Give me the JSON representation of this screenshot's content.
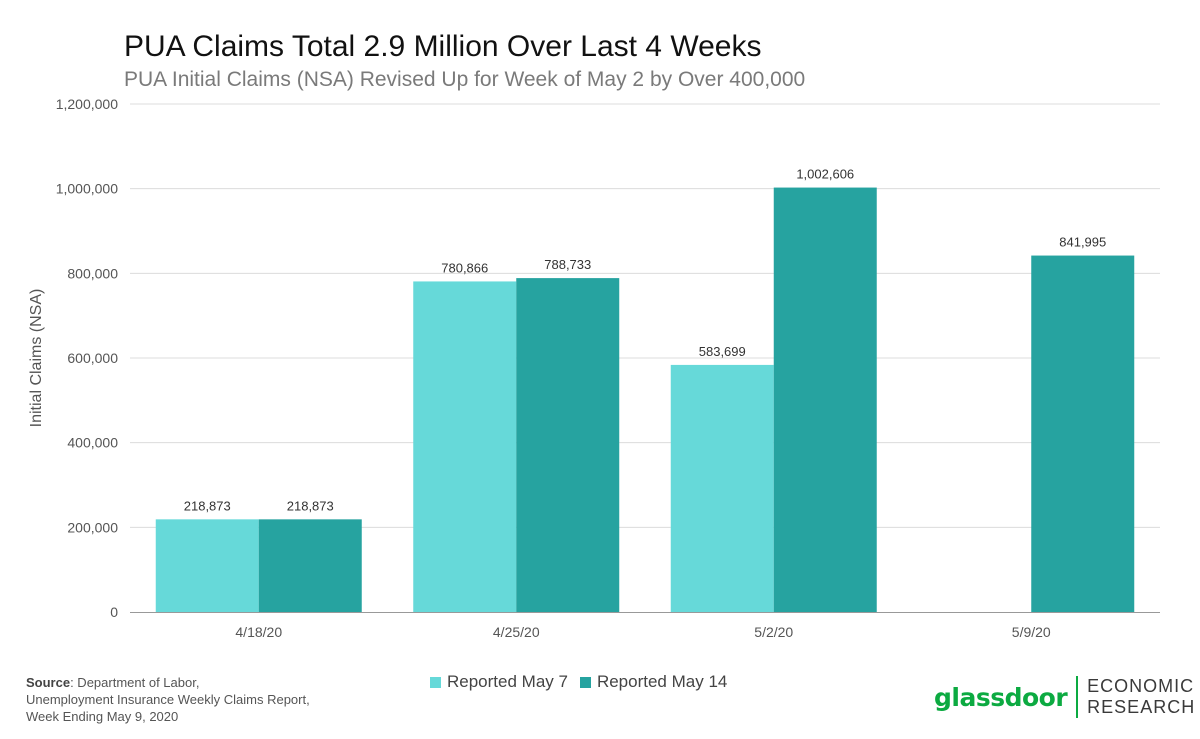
{
  "colors": {
    "series1": "#66d9d9",
    "series2": "#26a3a0",
    "grid": "#dcdcdc",
    "axis": "#999999",
    "logo_green": "#0caa41"
  },
  "footer": {
    "source_label": "Source",
    "source_lines": [
      ": Department of Labor,",
      "Unemployment Insurance Weekly Claims Report,",
      "Week Ending May 9, 2020"
    ]
  },
  "logo": {
    "word": "glassdoor",
    "econ_line1": "ECONOMIC",
    "econ_line2": "RESEARCH"
  },
  "chart_data": {
    "type": "bar",
    "title": "PUA Claims Total 2.9 Million Over Last 4 Weeks",
    "subtitle": "PUA Initial Claims (NSA) Revised Up for Week of May 2 by Over 400,000",
    "xlabel": "",
    "ylabel": "Initial Claims (NSA)",
    "ylim": [
      0,
      1200000
    ],
    "yticks": [
      0,
      200000,
      400000,
      600000,
      800000,
      1000000,
      1200000
    ],
    "ytick_labels": [
      "0",
      "200,000",
      "400,000",
      "600,000",
      "800,000",
      "1,000,000",
      "1,200,000"
    ],
    "grid": true,
    "legend_position": "bottom",
    "categories": [
      "4/18/20",
      "4/25/20",
      "5/2/20",
      "5/9/20"
    ],
    "series": [
      {
        "name": "Reported May 7",
        "values": [
          218873,
          780866,
          583699,
          null
        ],
        "labels": [
          "218,873",
          "780,866",
          "583,699",
          ""
        ]
      },
      {
        "name": "Reported May 14",
        "values": [
          218873,
          788733,
          1002606,
          841995
        ],
        "labels": [
          "218,873",
          "788,733",
          "1,002,606",
          "841,995"
        ]
      }
    ]
  }
}
